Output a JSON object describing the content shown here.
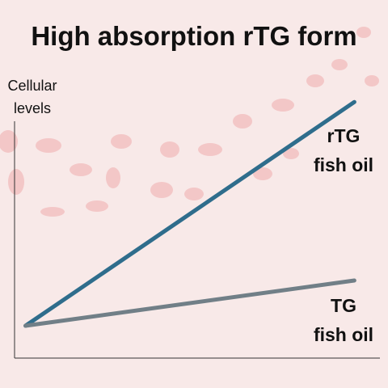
{
  "chart_data": {
    "type": "line",
    "title": "High absorption rTG form",
    "y_label": "Cellular\nlevels",
    "x": [
      3,
      93
    ],
    "xlim": [
      0,
      100
    ],
    "ylim": [
      0,
      100
    ],
    "series": [
      {
        "name": "rTG\nfish oil",
        "color": "#2f6d8c",
        "values": [
          12.5,
          99
        ]
      },
      {
        "name": "TG\nfish oil",
        "color": "#717f87",
        "values": [
          12.5,
          30
        ]
      }
    ]
  }
}
